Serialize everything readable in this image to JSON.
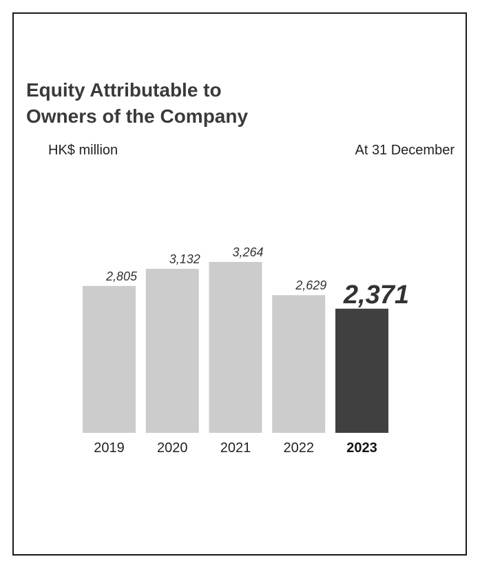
{
  "chart_data": {
    "type": "bar",
    "title_lines": [
      "Equity Attributable to",
      "Owners of the Company"
    ],
    "unit_label": "HK$ million",
    "period_label": "At 31 December",
    "categories": [
      "2019",
      "2020",
      "2021",
      "2022",
      "2023"
    ],
    "values": [
      2805,
      3132,
      3264,
      2629,
      2371
    ],
    "value_labels": [
      "2,805",
      "3,132",
      "3,264",
      "2,629",
      "2,371"
    ],
    "highlight_index": 4,
    "ylim": [
      0,
      3264
    ],
    "grid": false,
    "colors": {
      "bar": "#cccccc",
      "highlight_bar": "#404040",
      "highlight_label": "#f0501e"
    }
  }
}
